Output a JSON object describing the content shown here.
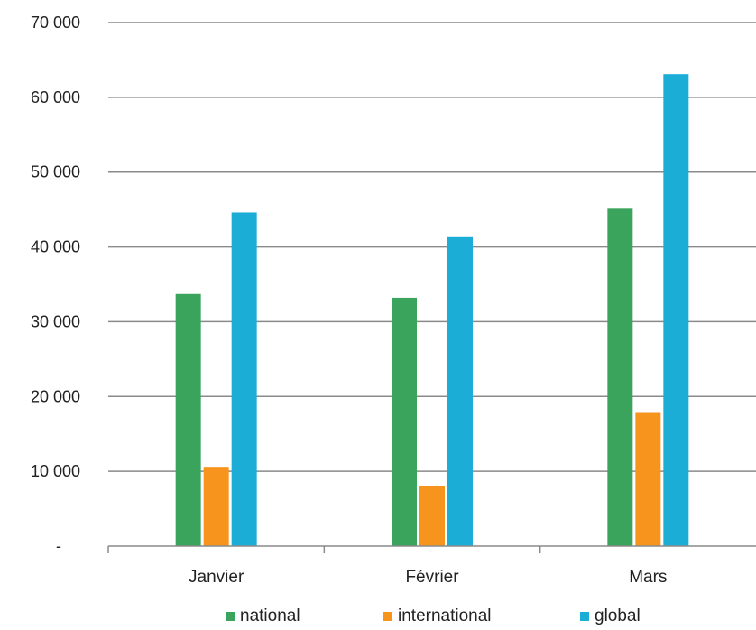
{
  "chart_data": {
    "type": "bar",
    "categories": [
      "Janvier",
      "Février",
      "Mars"
    ],
    "series": [
      {
        "name": "national",
        "color": "#3aa45c",
        "values": [
          33700,
          33200,
          45100
        ]
      },
      {
        "name": "international",
        "color": "#f7941d",
        "values": [
          10600,
          8000,
          17800
        ]
      },
      {
        "name": "global",
        "color": "#1badd6",
        "values": [
          44600,
          41300,
          63100
        ]
      }
    ],
    "y_ticks": [
      {
        "value": 0,
        "label": "-"
      },
      {
        "value": 10000,
        "label": "10 000"
      },
      {
        "value": 20000,
        "label": "20 000"
      },
      {
        "value": 30000,
        "label": "30 000"
      },
      {
        "value": 40000,
        "label": "40 000"
      },
      {
        "value": 50000,
        "label": "50 000"
      },
      {
        "value": 60000,
        "label": "60 000"
      },
      {
        "value": 70000,
        "label": "70 000"
      }
    ],
    "ylim": [
      0,
      70000
    ],
    "grid": true,
    "legend_position": "bottom"
  }
}
